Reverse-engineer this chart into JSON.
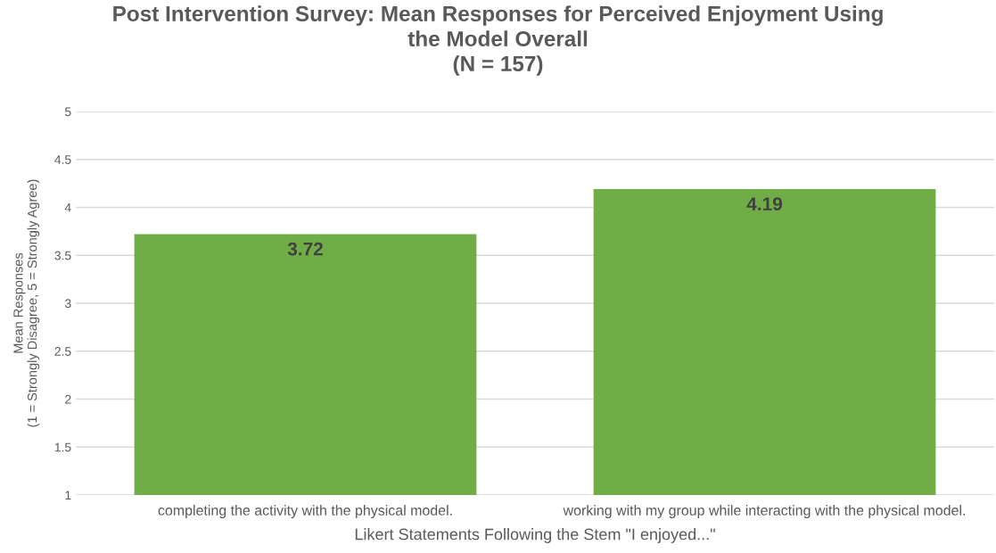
{
  "chart_data": {
    "type": "bar",
    "title": "Post Intervention Survey: Mean Responses for Perceived Enjoyment Using\nthe Model Overall\n(N = 157)",
    "xlabel": "Likert Statements Following the Stem \"I enjoyed...\"",
    "ylabel": "Mean Responses\n(1 = Strongly Disagree, 5 = Strongly Agree)",
    "categories": [
      "completing the activity with the physical model.",
      "working with my group while interacting with the physical model."
    ],
    "values": [
      3.72,
      4.19
    ],
    "color": "#70ad47",
    "data_labels": true,
    "ylim": [
      1,
      5
    ],
    "yticks": [
      1,
      1.5,
      2,
      2.5,
      3,
      3.5,
      4,
      4.5,
      5
    ],
    "grid": "y",
    "legend": false
  }
}
